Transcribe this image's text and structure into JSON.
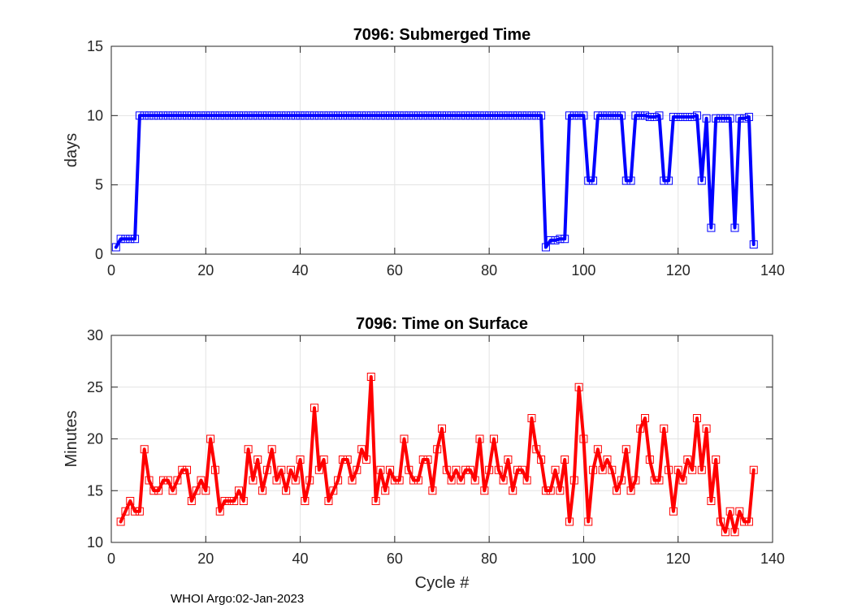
{
  "chart_data": [
    {
      "type": "line",
      "title": "7096: Submerged Time",
      "xlabel": "",
      "ylabel": "days",
      "xlim": [
        0,
        140
      ],
      "ylim": [
        0,
        15
      ],
      "xticks": [
        0,
        20,
        40,
        60,
        80,
        100,
        120,
        140
      ],
      "yticks": [
        0,
        5,
        10,
        15
      ],
      "grid": true,
      "color": "#0000ff",
      "marker": "square",
      "series": [
        {
          "name": "Submerged Time",
          "x": [
            1,
            2,
            3,
            4,
            5,
            6,
            7,
            8,
            9,
            10,
            11,
            12,
            13,
            14,
            15,
            16,
            17,
            18,
            19,
            20,
            21,
            22,
            23,
            24,
            25,
            26,
            27,
            28,
            29,
            30,
            31,
            32,
            33,
            34,
            35,
            36,
            37,
            38,
            39,
            40,
            41,
            42,
            43,
            44,
            45,
            46,
            47,
            48,
            49,
            50,
            51,
            52,
            53,
            54,
            55,
            56,
            57,
            58,
            59,
            60,
            61,
            62,
            63,
            64,
            65,
            66,
            67,
            68,
            69,
            70,
            71,
            72,
            73,
            74,
            75,
            76,
            77,
            78,
            79,
            80,
            81,
            82,
            83,
            84,
            85,
            86,
            87,
            88,
            89,
            90,
            91,
            92,
            93,
            94,
            95,
            96,
            97,
            98,
            99,
            100,
            101,
            102,
            103,
            104,
            105,
            106,
            107,
            108,
            109,
            110,
            111,
            112,
            113,
            114,
            115,
            116,
            117,
            118,
            119,
            120,
            121,
            122,
            123,
            124,
            125,
            126,
            127,
            128,
            129,
            130,
            131,
            132,
            133,
            134,
            135,
            136
          ],
          "y": [
            0.5,
            1.1,
            1.1,
            1.1,
            1.1,
            10,
            10,
            10,
            10,
            10,
            10,
            10,
            10,
            10,
            10,
            10,
            10,
            10,
            10,
            10,
            10,
            10,
            10,
            10,
            10,
            10,
            10,
            10,
            10,
            10,
            10,
            10,
            10,
            10,
            10,
            10,
            10,
            10,
            10,
            10,
            10,
            10,
            10,
            10,
            10,
            10,
            10,
            10,
            10,
            10,
            10,
            10,
            10,
            10,
            10,
            10,
            10,
            10,
            10,
            10,
            10,
            10,
            10,
            10,
            10,
            10,
            10,
            10,
            10,
            10,
            10,
            10,
            10,
            10,
            10,
            10,
            10,
            10,
            10,
            10,
            10,
            10,
            10,
            10,
            10,
            10,
            10,
            10,
            10,
            10,
            10,
            0.5,
            1,
            1,
            1.1,
            1.1,
            10,
            10,
            10,
            10,
            5.3,
            5.3,
            10,
            10,
            10,
            10,
            10,
            10,
            5.3,
            5.3,
            10,
            10,
            10,
            9.9,
            9.9,
            10,
            5.3,
            5.3,
            9.9,
            9.9,
            9.9,
            9.9,
            9.9,
            10,
            5.3,
            9.8,
            1.9,
            9.8,
            9.8,
            9.8,
            9.8,
            1.9,
            9.8,
            9.8,
            9.9,
            0.7
          ]
        }
      ]
    },
    {
      "type": "line",
      "title": "7096: Time on Surface",
      "xlabel": "Cycle #",
      "ylabel": "Minutes",
      "xlim": [
        0,
        140
      ],
      "ylim": [
        10,
        30
      ],
      "xticks": [
        0,
        20,
        40,
        60,
        80,
        100,
        120,
        140
      ],
      "yticks": [
        10,
        15,
        20,
        25,
        30
      ],
      "grid": true,
      "color": "#ff0000",
      "marker": "square",
      "series": [
        {
          "name": "Time on Surface",
          "x": [
            2,
            3,
            4,
            5,
            6,
            7,
            8,
            9,
            10,
            11,
            12,
            13,
            14,
            15,
            16,
            17,
            18,
            19,
            20,
            21,
            22,
            23,
            24,
            25,
            26,
            27,
            28,
            29,
            30,
            31,
            32,
            33,
            34,
            35,
            36,
            37,
            38,
            39,
            40,
            41,
            42,
            43,
            44,
            45,
            46,
            47,
            48,
            49,
            50,
            51,
            52,
            53,
            54,
            55,
            56,
            57,
            58,
            59,
            60,
            61,
            62,
            63,
            64,
            65,
            66,
            67,
            68,
            69,
            70,
            71,
            72,
            73,
            74,
            75,
            76,
            77,
            78,
            79,
            80,
            81,
            82,
            83,
            84,
            85,
            86,
            87,
            88,
            89,
            90,
            91,
            92,
            93,
            94,
            95,
            96,
            97,
            98,
            99,
            100,
            101,
            102,
            103,
            104,
            105,
            106,
            107,
            108,
            109,
            110,
            111,
            112,
            113,
            114,
            115,
            116,
            117,
            118,
            119,
            120,
            121,
            122,
            123,
            124,
            125,
            126,
            127,
            128,
            129,
            130,
            131,
            132,
            133,
            134,
            135,
            136
          ],
          "y": [
            12,
            13,
            14,
            13,
            13,
            19,
            16,
            15,
            15,
            16,
            16,
            15,
            16,
            17,
            17,
            14,
            15,
            16,
            15,
            20,
            17,
            13,
            14,
            14,
            14,
            15,
            14,
            19,
            16,
            18,
            15,
            17,
            19,
            16,
            17,
            15,
            17,
            16,
            18,
            14,
            16,
            23,
            17,
            18,
            14,
            15,
            16,
            18,
            18,
            16,
            17,
            19,
            18,
            26,
            14,
            17,
            15,
            17,
            16,
            16,
            20,
            17,
            16,
            16,
            18,
            18,
            15,
            19,
            21,
            17,
            16,
            17,
            16,
            17,
            17,
            16,
            20,
            15,
            17,
            20,
            17,
            16,
            18,
            15,
            17,
            17,
            16,
            22,
            19,
            18,
            15,
            15,
            17,
            15,
            18,
            12,
            16,
            25,
            20,
            12,
            17,
            19,
            17,
            18,
            17,
            15,
            16,
            19,
            15,
            16,
            21,
            22,
            18,
            16,
            16,
            21,
            17,
            13,
            17,
            16,
            18,
            17,
            22,
            17,
            21,
            14,
            18,
            12,
            11,
            13,
            11,
            13,
            12,
            12,
            17
          ]
        }
      ]
    }
  ],
  "footer": {
    "text": "WHOI Argo:02-Jan-2023"
  }
}
